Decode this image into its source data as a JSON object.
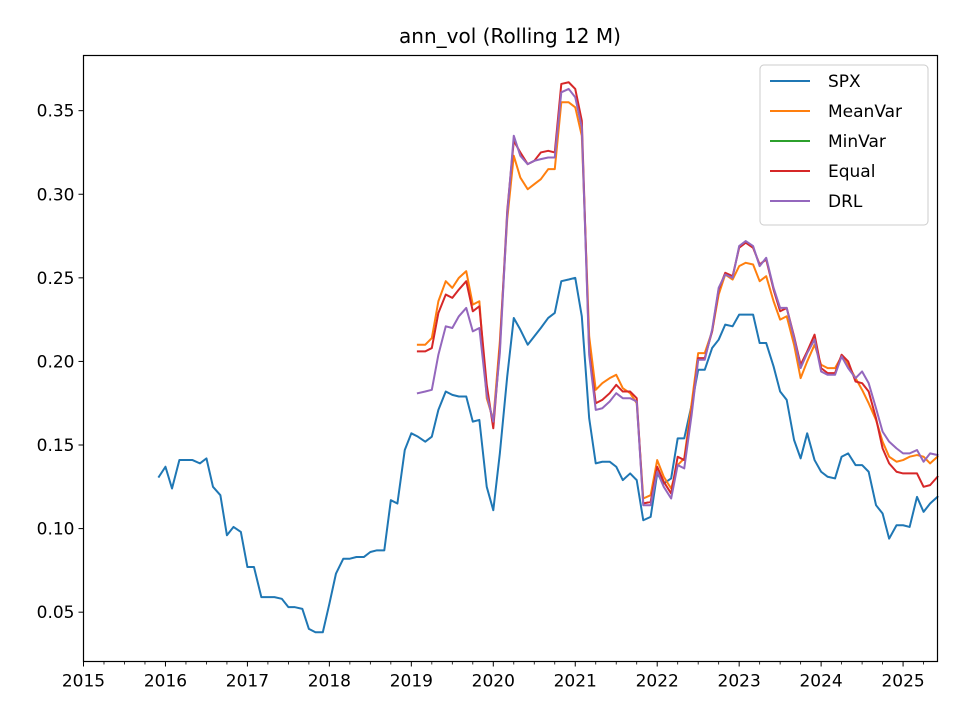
{
  "chart_data": {
    "type": "line",
    "title": "ann_vol (Rolling 12 M)",
    "xlabel": "",
    "ylabel": "",
    "x_ticks": [
      "2015",
      "2016",
      "2017",
      "2018",
      "2019",
      "2020",
      "2021",
      "2022",
      "2023",
      "2024",
      "2025"
    ],
    "y_ticks": [
      "0.05",
      "0.10",
      "0.15",
      "0.20",
      "0.25",
      "0.30",
      "0.35"
    ],
    "xlim": [
      2015.0,
      2025.42
    ],
    "ylim": [
      0.0205,
      0.383
    ],
    "grid": false,
    "legend_position": "top-right",
    "series": [
      {
        "name": "SPX",
        "color": "#1f77b4",
        "x": [
          2015.92,
          2016.0,
          2016.08,
          2016.17,
          2016.25,
          2016.33,
          2016.42,
          2016.5,
          2016.58,
          2016.67,
          2016.75,
          2016.83,
          2016.92,
          2017.0,
          2017.08,
          2017.17,
          2017.25,
          2017.33,
          2017.42,
          2017.5,
          2017.58,
          2017.67,
          2017.75,
          2017.83,
          2017.92,
          2018.0,
          2018.08,
          2018.17,
          2018.25,
          2018.33,
          2018.42,
          2018.5,
          2018.58,
          2018.67,
          2018.75,
          2018.83,
          2018.92,
          2019.0,
          2019.08,
          2019.17,
          2019.25,
          2019.33,
          2019.42,
          2019.5,
          2019.58,
          2019.67,
          2019.75,
          2019.83,
          2019.92,
          2020.0,
          2020.08,
          2020.17,
          2020.25,
          2020.33,
          2020.42,
          2020.5,
          2020.58,
          2020.67,
          2020.75,
          2020.83,
          2020.92,
          2021.0,
          2021.08,
          2021.17,
          2021.25,
          2021.33,
          2021.42,
          2021.5,
          2021.58,
          2021.67,
          2021.75,
          2021.83,
          2021.92,
          2022.0,
          2022.08,
          2022.17,
          2022.25,
          2022.33,
          2022.42,
          2022.5,
          2022.58,
          2022.67,
          2022.75,
          2022.83,
          2022.92,
          2023.0,
          2023.08,
          2023.17,
          2023.25,
          2023.33,
          2023.42,
          2023.5,
          2023.58,
          2023.67,
          2023.75,
          2023.83,
          2023.92,
          2024.0,
          2024.08,
          2024.17,
          2024.25,
          2024.33,
          2024.42,
          2024.5,
          2024.58,
          2024.67,
          2024.75,
          2024.83,
          2024.92,
          2025.0,
          2025.08,
          2025.17,
          2025.25,
          2025.33,
          2025.42
        ],
        "values": [
          0.131,
          0.137,
          0.124,
          0.141,
          0.141,
          0.141,
          0.139,
          0.142,
          0.125,
          0.12,
          0.096,
          0.101,
          0.098,
          0.077,
          0.077,
          0.059,
          0.059,
          0.059,
          0.058,
          0.053,
          0.053,
          0.052,
          0.04,
          0.038,
          0.038,
          0.055,
          0.073,
          0.082,
          0.082,
          0.083,
          0.083,
          0.086,
          0.087,
          0.087,
          0.117,
          0.115,
          0.147,
          0.157,
          0.155,
          0.152,
          0.155,
          0.171,
          0.182,
          0.18,
          0.179,
          0.179,
          0.164,
          0.165,
          0.125,
          0.111,
          0.145,
          0.191,
          0.226,
          0.219,
          0.21,
          0.215,
          0.22,
          0.226,
          0.229,
          0.248,
          0.249,
          0.25,
          0.227,
          0.166,
          0.139,
          0.14,
          0.14,
          0.137,
          0.129,
          0.133,
          0.129,
          0.105,
          0.107,
          0.133,
          0.127,
          0.13,
          0.154,
          0.154,
          0.174,
          0.195,
          0.195,
          0.208,
          0.213,
          0.222,
          0.221,
          0.228,
          0.228,
          0.228,
          0.211,
          0.211,
          0.197,
          0.182,
          0.177,
          0.153,
          0.142,
          0.157,
          0.141,
          0.134,
          0.131,
          0.13,
          0.143,
          0.145,
          0.138,
          0.138,
          0.134,
          0.114,
          0.109,
          0.094,
          0.102,
          0.102,
          0.101,
          0.119,
          0.11,
          0.115,
          0.119
        ]
      },
      {
        "name": "MeanVar",
        "color": "#ff7f0e",
        "x": [
          2019.08,
          2019.17,
          2019.25,
          2019.33,
          2019.42,
          2019.5,
          2019.58,
          2019.67,
          2019.75,
          2019.83,
          2019.92,
          2020.0,
          2020.08,
          2020.17,
          2020.25,
          2020.33,
          2020.42,
          2020.5,
          2020.58,
          2020.67,
          2020.75,
          2020.83,
          2020.92,
          2021.0,
          2021.08,
          2021.17,
          2021.25,
          2021.33,
          2021.42,
          2021.5,
          2021.58,
          2021.67,
          2021.75,
          2021.83,
          2021.92,
          2022.0,
          2022.08,
          2022.17,
          2022.25,
          2022.33,
          2022.42,
          2022.5,
          2022.58,
          2022.67,
          2022.75,
          2022.83,
          2022.92,
          2023.0,
          2023.08,
          2023.17,
          2023.25,
          2023.33,
          2023.42,
          2023.5,
          2023.58,
          2023.67,
          2023.75,
          2023.83,
          2023.92,
          2024.0,
          2024.08,
          2024.17,
          2024.25,
          2024.33,
          2024.42,
          2024.5,
          2024.58,
          2024.67,
          2024.75,
          2024.83,
          2024.92,
          2025.0,
          2025.08,
          2025.17,
          2025.25,
          2025.33,
          2025.42
        ],
        "values": [
          0.21,
          0.21,
          0.214,
          0.236,
          0.248,
          0.244,
          0.25,
          0.254,
          0.234,
          0.236,
          0.178,
          0.165,
          0.212,
          0.285,
          0.323,
          0.31,
          0.303,
          0.306,
          0.309,
          0.315,
          0.315,
          0.355,
          0.355,
          0.352,
          0.335,
          0.215,
          0.183,
          0.187,
          0.19,
          0.192,
          0.184,
          0.181,
          0.175,
          0.118,
          0.12,
          0.141,
          0.131,
          0.124,
          0.138,
          0.142,
          0.175,
          0.205,
          0.205,
          0.218,
          0.24,
          0.252,
          0.249,
          0.257,
          0.259,
          0.258,
          0.248,
          0.251,
          0.236,
          0.225,
          0.227,
          0.21,
          0.19,
          0.2,
          0.21,
          0.198,
          0.196,
          0.196,
          0.203,
          0.198,
          0.19,
          0.183,
          0.175,
          0.165,
          0.152,
          0.143,
          0.14,
          0.141,
          0.143,
          0.144,
          0.143,
          0.139,
          0.143
        ]
      },
      {
        "name": "MinVar",
        "color": "#2ca02c",
        "x": [],
        "values": []
      },
      {
        "name": "Equal",
        "color": "#d62728",
        "x": [
          2019.08,
          2019.17,
          2019.25,
          2019.33,
          2019.42,
          2019.5,
          2019.58,
          2019.67,
          2019.75,
          2019.83,
          2019.92,
          2020.0,
          2020.08,
          2020.17,
          2020.25,
          2020.33,
          2020.42,
          2020.5,
          2020.58,
          2020.67,
          2020.75,
          2020.83,
          2020.92,
          2021.0,
          2021.08,
          2021.17,
          2021.25,
          2021.33,
          2021.42,
          2021.5,
          2021.58,
          2021.67,
          2021.75,
          2021.83,
          2021.92,
          2022.0,
          2022.08,
          2022.17,
          2022.25,
          2022.33,
          2022.42,
          2022.5,
          2022.58,
          2022.67,
          2022.75,
          2022.83,
          2022.92,
          2023.0,
          2023.08,
          2023.17,
          2023.25,
          2023.33,
          2023.42,
          2023.5,
          2023.58,
          2023.67,
          2023.75,
          2023.83,
          2023.92,
          2024.0,
          2024.08,
          2024.17,
          2024.25,
          2024.33,
          2024.42,
          2024.5,
          2024.58,
          2024.67,
          2024.75,
          2024.83,
          2024.92,
          2025.0,
          2025.08,
          2025.17,
          2025.25,
          2025.33,
          2025.42
        ],
        "values": [
          0.206,
          0.206,
          0.208,
          0.229,
          0.24,
          0.238,
          0.243,
          0.248,
          0.23,
          0.233,
          0.186,
          0.16,
          0.208,
          0.29,
          0.332,
          0.325,
          0.318,
          0.32,
          0.325,
          0.326,
          0.325,
          0.366,
          0.367,
          0.363,
          0.344,
          0.206,
          0.175,
          0.177,
          0.181,
          0.186,
          0.182,
          0.182,
          0.178,
          0.115,
          0.116,
          0.137,
          0.128,
          0.121,
          0.143,
          0.141,
          0.17,
          0.202,
          0.202,
          0.218,
          0.243,
          0.253,
          0.251,
          0.268,
          0.271,
          0.268,
          0.258,
          0.261,
          0.243,
          0.23,
          0.232,
          0.215,
          0.198,
          0.206,
          0.216,
          0.196,
          0.193,
          0.193,
          0.204,
          0.2,
          0.188,
          0.187,
          0.182,
          0.166,
          0.148,
          0.139,
          0.134,
          0.133,
          0.133,
          0.133,
          0.125,
          0.126,
          0.131
        ]
      },
      {
        "name": "DRL",
        "color": "#9467bd",
        "x": [
          2019.08,
          2019.17,
          2019.25,
          2019.33,
          2019.42,
          2019.5,
          2019.58,
          2019.67,
          2019.75,
          2019.83,
          2019.92,
          2020.0,
          2020.08,
          2020.17,
          2020.25,
          2020.33,
          2020.42,
          2020.5,
          2020.58,
          2020.67,
          2020.75,
          2020.83,
          2020.92,
          2021.0,
          2021.08,
          2021.17,
          2021.25,
          2021.33,
          2021.42,
          2021.5,
          2021.58,
          2021.67,
          2021.75,
          2021.83,
          2021.92,
          2022.0,
          2022.08,
          2022.17,
          2022.25,
          2022.33,
          2022.42,
          2022.5,
          2022.58,
          2022.67,
          2022.75,
          2022.83,
          2022.92,
          2023.0,
          2023.08,
          2023.17,
          2023.25,
          2023.33,
          2023.42,
          2023.5,
          2023.58,
          2023.67,
          2023.75,
          2023.83,
          2023.92,
          2024.0,
          2024.08,
          2024.17,
          2024.25,
          2024.33,
          2024.42,
          2024.5,
          2024.58,
          2024.67,
          2024.75,
          2024.83,
          2024.92,
          2025.0,
          2025.08,
          2025.17,
          2025.25,
          2025.33,
          2025.42
        ],
        "values": [
          0.181,
          0.182,
          0.183,
          0.204,
          0.221,
          0.22,
          0.227,
          0.232,
          0.218,
          0.22,
          0.18,
          0.164,
          0.205,
          0.288,
          0.335,
          0.323,
          0.318,
          0.32,
          0.321,
          0.322,
          0.322,
          0.361,
          0.363,
          0.358,
          0.34,
          0.204,
          0.171,
          0.172,
          0.176,
          0.181,
          0.178,
          0.178,
          0.176,
          0.114,
          0.114,
          0.134,
          0.125,
          0.118,
          0.138,
          0.136,
          0.168,
          0.201,
          0.201,
          0.219,
          0.244,
          0.252,
          0.25,
          0.269,
          0.272,
          0.269,
          0.257,
          0.262,
          0.244,
          0.232,
          0.232,
          0.214,
          0.196,
          0.205,
          0.213,
          0.194,
          0.192,
          0.192,
          0.203,
          0.196,
          0.19,
          0.194,
          0.187,
          0.172,
          0.158,
          0.152,
          0.148,
          0.145,
          0.145,
          0.147,
          0.14,
          0.145,
          0.144
        ]
      }
    ]
  }
}
